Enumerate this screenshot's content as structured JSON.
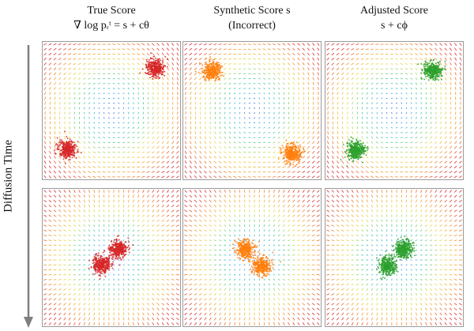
{
  "columns": [
    {
      "title_line1": "True Score",
      "title_line2": "∇ log pᵣᵗ = s + cθ"
    },
    {
      "title_line1": "Synthetic Score s",
      "title_line2": "(Incorrect)"
    },
    {
      "title_line1": "Adjusted Score",
      "title_line2": "s + cϕ"
    }
  ],
  "axis_label": "Diffusion Time",
  "colors": {
    "true": "#d62728",
    "synthetic": "#ff7f0e",
    "adjusted": "#2ca02c",
    "arrow": "#7f7f7f",
    "panel_border": "#9a9a9a"
  },
  "panels": [
    {
      "row": "early",
      "field": "rotational",
      "clusters": [
        [
          0.82,
          0.19
        ],
        [
          0.18,
          0.78
        ]
      ],
      "color_key": "true"
    },
    {
      "row": "early",
      "field": "rotational",
      "clusters": [
        [
          0.21,
          0.21
        ],
        [
          0.79,
          0.81
        ]
      ],
      "color_key": "synthetic"
    },
    {
      "row": "early",
      "field": "rotational",
      "clusters": [
        [
          0.78,
          0.21
        ],
        [
          0.22,
          0.79
        ]
      ],
      "color_key": "adjusted"
    },
    {
      "row": "late",
      "field": "radial",
      "clusters": [
        [
          0.55,
          0.44
        ],
        [
          0.43,
          0.55
        ]
      ],
      "color_key": "true"
    },
    {
      "row": "late",
      "field": "radial",
      "clusters": [
        [
          0.45,
          0.44
        ],
        [
          0.57,
          0.56
        ]
      ],
      "color_key": "synthetic"
    },
    {
      "row": "late",
      "field": "radial",
      "clusters": [
        [
          0.57,
          0.44
        ],
        [
          0.45,
          0.56
        ]
      ],
      "color_key": "adjusted"
    }
  ]
}
